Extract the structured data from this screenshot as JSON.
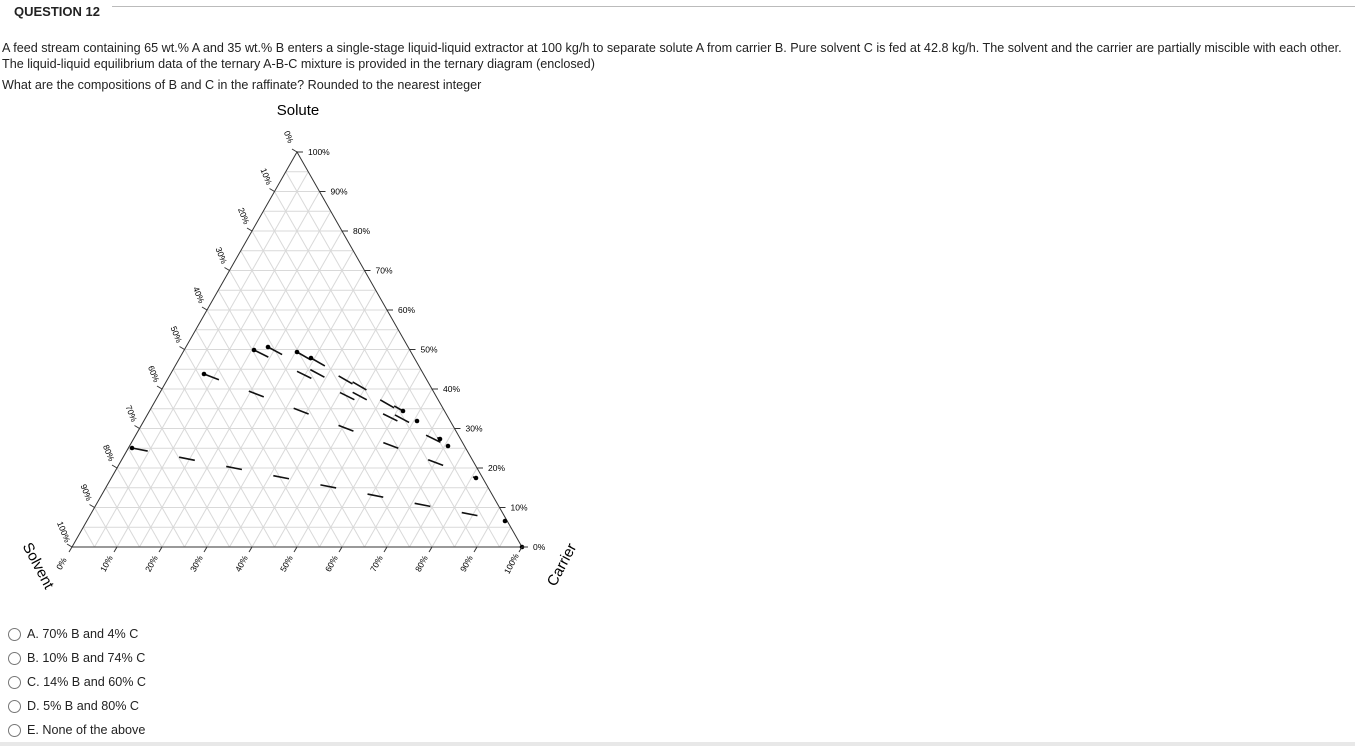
{
  "header": {
    "title": "QUESTION 12"
  },
  "question": {
    "paragraphs": [
      "A feed stream containing 65 wt.% A and 35 wt.% B enters a single-stage liquid-liquid extractor at 100 kg/h to separate solute A from carrier B. Pure solvent C is fed at 42.8 kg/h. The solvent and the carrier are partially miscible with each other. The liquid-liquid equilibrium data of the ternary A-B-C mixture is provided in the ternary diagram (enclosed)",
      "What are the compositions of B and C in the raffinate? Rounded to the nearest integer"
    ]
  },
  "diagram": {
    "top_label": "Solute",
    "left_label": "Solvent",
    "right_label": "Carrier",
    "left_ticks": [
      "0%",
      "10%",
      "20%",
      "30%",
      "40%",
      "50%",
      "60%",
      "70%",
      "80%",
      "90%",
      "100%"
    ],
    "right_ticks": [
      "100%",
      "90%",
      "80%",
      "70%",
      "60%",
      "50%",
      "40%",
      "30%",
      "20%",
      "10%",
      "0%"
    ],
    "bottom_ticks": [
      "0%",
      "10%",
      "20%",
      "30%",
      "40%",
      "50%",
      "60%",
      "70%",
      "80%",
      "90%",
      "100%"
    ]
  },
  "options": [
    "A. 70% B and 4% C",
    "B. 10% B and 74% C",
    "C. 14% B and 60% C",
    "D. 5% B and 80% C",
    "E. None of the above"
  ]
}
